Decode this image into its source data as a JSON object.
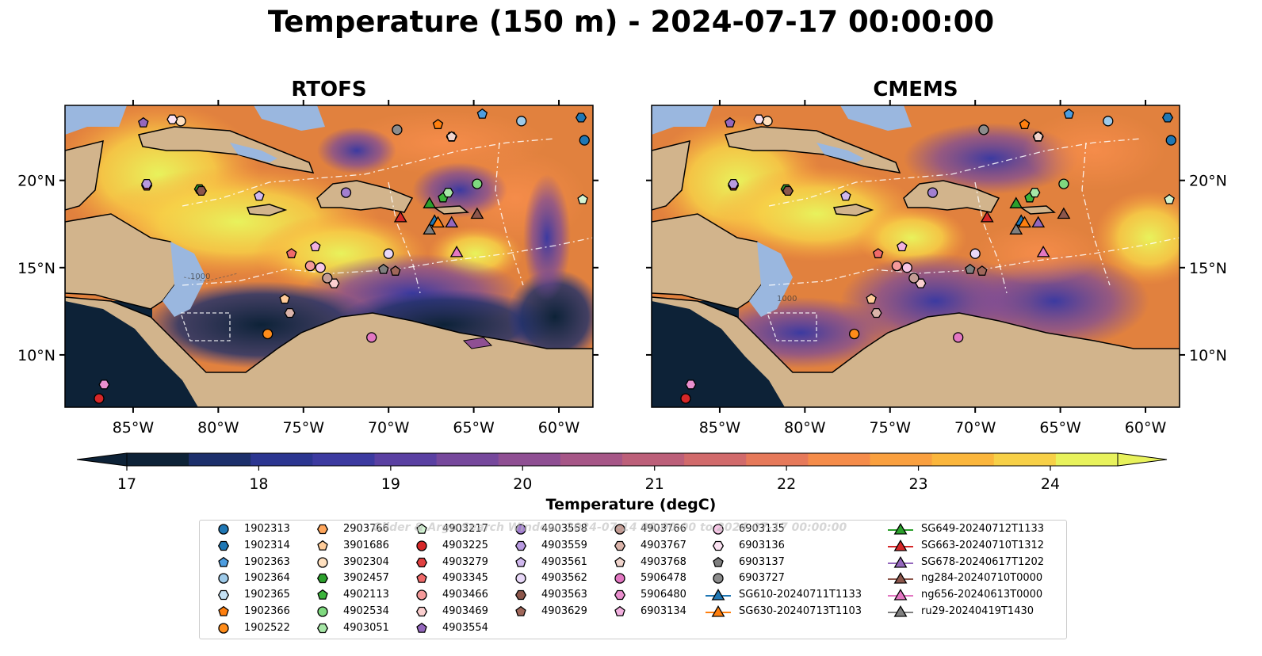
{
  "title": "Temperature (150 m) - 2024-07-17 00:00:00",
  "chart_data": {
    "type": "heatmap",
    "panels": [
      {
        "title": "RTOFS",
        "model": "rtofs"
      },
      {
        "title": "CMEMS",
        "model": "cmems"
      }
    ],
    "lon_range": [
      -89,
      -58
    ],
    "lat_range": [
      7,
      24.3
    ],
    "x_ticks": [
      "85°W",
      "80°W",
      "75°W",
      "70°W",
      "65°W",
      "60°W"
    ],
    "x_tick_values": [
      -85,
      -80,
      -75,
      -70,
      -65,
      -60
    ],
    "y_ticks": [
      "20°N",
      "15°N",
      "10°N"
    ],
    "y_tick_values": [
      20,
      15,
      10
    ],
    "contour_labels": [
      "1000",
      "1000"
    ],
    "colorbar": {
      "label": "Temperature (degC)",
      "min": 16.6,
      "max": 24.9,
      "ticks": [
        "17",
        "18",
        "19",
        "20",
        "21",
        "22",
        "23",
        "24"
      ],
      "tick_values": [
        17,
        18,
        19,
        20,
        21,
        22,
        23,
        24
      ],
      "extend": "both",
      "colors": [
        "#0d2237",
        "#1c2f6b",
        "#2b3590",
        "#3c3aa0",
        "#5a40a2",
        "#76489c",
        "#8f4f93",
        "#a65687",
        "#bc5f79",
        "#d16a6b",
        "#e6795a",
        "#f58c4a",
        "#faa03f",
        "#fbb63c",
        "#f7d047",
        "#e8f25c"
      ]
    },
    "legend_columns": [
      [
        {
          "label": "1902313",
          "marker": "circle",
          "color": "#1f77b4"
        },
        {
          "label": "1902314",
          "marker": "hexagon",
          "color": "#1f77b4"
        },
        {
          "label": "1902363",
          "marker": "pentagon",
          "color": "#4d9de0"
        },
        {
          "label": "1902364",
          "marker": "circle",
          "color": "#9ecae9"
        },
        {
          "label": "1902365",
          "marker": "hexagon",
          "color": "#c6e2f5"
        },
        {
          "label": "1902366",
          "marker": "pentagon",
          "color": "#ff7f0e"
        },
        {
          "label": "1902522",
          "marker": "circle",
          "color": "#ff8c1a"
        }
      ],
      [
        {
          "label": "2903766",
          "marker": "hexagon",
          "color": "#ffa65c"
        },
        {
          "label": "3901686",
          "marker": "pentagon",
          "color": "#ffcc99"
        },
        {
          "label": "3902304",
          "marker": "circle",
          "color": "#ffe0bf"
        },
        {
          "label": "3902457",
          "marker": "hexagon",
          "color": "#2ca02c"
        },
        {
          "label": "4902113",
          "marker": "pentagon",
          "color": "#3cb43c"
        },
        {
          "label": "4902534",
          "marker": "circle",
          "color": "#7fd97f"
        },
        {
          "label": "4903051",
          "marker": "hexagon",
          "color": "#a6e6a6"
        }
      ],
      [
        {
          "label": "4903217",
          "marker": "pentagon",
          "color": "#d4f5d4"
        },
        {
          "label": "4903225",
          "marker": "circle",
          "color": "#d62728"
        },
        {
          "label": "4903279",
          "marker": "hexagon",
          "color": "#e04040"
        },
        {
          "label": "4903345",
          "marker": "pentagon",
          "color": "#f06a6a"
        },
        {
          "label": "4903466",
          "marker": "circle",
          "color": "#f59a9a"
        },
        {
          "label": "4903469",
          "marker": "hexagon",
          "color": "#fbcfcf"
        },
        {
          "label": "4903554",
          "marker": "pentagon",
          "color": "#9467bd"
        }
      ],
      [
        {
          "label": "4903558",
          "marker": "circle",
          "color": "#a27fd0"
        },
        {
          "label": "4903559",
          "marker": "hexagon",
          "color": "#b89ae0"
        },
        {
          "label": "4903561",
          "marker": "pentagon",
          "color": "#d0b8ee"
        },
        {
          "label": "4903562",
          "marker": "circle",
          "color": "#e8d8f8"
        },
        {
          "label": "4903563",
          "marker": "hexagon",
          "color": "#8c564b"
        },
        {
          "label": "4903629",
          "marker": "pentagon",
          "color": "#a0675a"
        }
      ],
      [
        {
          "label": "4903766",
          "marker": "circle",
          "color": "#c49c94"
        },
        {
          "label": "4903767",
          "marker": "hexagon",
          "color": "#dbb4aa"
        },
        {
          "label": "4903768",
          "marker": "pentagon",
          "color": "#f0d4cc"
        },
        {
          "label": "5906478",
          "marker": "circle",
          "color": "#e377c2"
        },
        {
          "label": "5906480",
          "marker": "hexagon",
          "color": "#ea8fce"
        },
        {
          "label": "6903134",
          "marker": "pentagon",
          "color": "#f2b0df"
        }
      ],
      [
        {
          "label": "6903135",
          "marker": "circle",
          "color": "#f7c6e6"
        },
        {
          "label": "6903136",
          "marker": "hexagon",
          "color": "#fbe2f2"
        },
        {
          "label": "6903137",
          "marker": "pentagon",
          "color": "#7f7f7f"
        },
        {
          "label": "6903727",
          "marker": "circle",
          "color": "#8c8c8c"
        },
        {
          "label": "SG610-20240711T1133",
          "marker": "triangle",
          "color": "#1f77b4"
        },
        {
          "label": "SG630-20240713T1103",
          "marker": "triangle",
          "color": "#ff7f0e"
        }
      ],
      [
        {
          "label": "SG649-20240712T1133",
          "marker": "triangle",
          "color": "#2ca02c"
        },
        {
          "label": "SG663-20240710T1312",
          "marker": "triangle",
          "color": "#d62728"
        },
        {
          "label": "SG678-20240617T1202",
          "marker": "triangle",
          "color": "#9467bd"
        },
        {
          "label": "ng284-20240710T0000",
          "marker": "triangle",
          "color": "#8c564b"
        },
        {
          "label": "ng656-20240613T0000",
          "marker": "triangle",
          "color": "#e377c2"
        },
        {
          "label": "ru29-20240419T1430",
          "marker": "triangle",
          "color": "#7f7f7f"
        }
      ]
    ],
    "watermark": "Glider & Argo Search Window: 2024-07-14 00:00:00 to 2024-07-17 00:00:00"
  }
}
